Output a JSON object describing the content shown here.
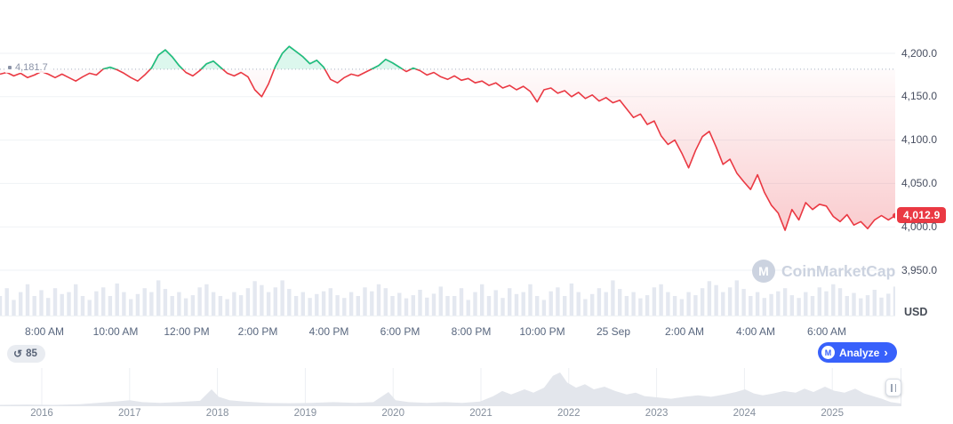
{
  "colors": {
    "up_green": "#16c784",
    "down_red": "#ea3943",
    "accent_blue": "#3861fb",
    "grid": "#eff2f5",
    "baseline_dash": "#a8b1c2",
    "volume_bar": "#e4e8f0",
    "navigator_fill": "#e3e6ec",
    "navigator_tick": "#eceff3"
  },
  "icons": {
    "cmc_logo_glyph": "M",
    "history_glyph": "↺",
    "chevron_right_glyph": "›",
    "handle_glyph": "||"
  },
  "overlays": {
    "baseline_label": "4,181.7",
    "price_badge": "4,012.9",
    "currency_label": "USD",
    "watermark_text": "CoinMarketCap"
  },
  "toolbar": {
    "history_count": "85",
    "analyze_label": "Analyze"
  },
  "chart_data": {
    "type": "line",
    "description": "Intraday cryptocurrency price in USD with volume bars and 10-year range navigator",
    "baseline_open": 4181.7,
    "last_price": 4012.9,
    "y_tick_labels": [
      "4,200.0",
      "4,150.0",
      "4,100.0",
      "4,050.0",
      "4,000.0",
      "3,950.0"
    ],
    "y_tick_values": [
      4200,
      4150,
      4100,
      4050,
      4000,
      3950
    ],
    "x_tick_labels": [
      "8:00 AM",
      "10:00 AM",
      "12:00 PM",
      "2:00 PM",
      "4:00 PM",
      "6:00 PM",
      "8:00 PM",
      "10:00 PM",
      "25 Sep",
      "2:00 AM",
      "4:00 AM",
      "6:00 AM"
    ],
    "series": [
      {
        "name": "price_usd",
        "values": [
          4176,
          4178,
          4174,
          4177,
          4172,
          4175,
          4179,
          4176,
          4172,
          4176,
          4172,
          4168,
          4173,
          4177,
          4175,
          4182,
          4184,
          4181,
          4177,
          4172,
          4168,
          4175,
          4183,
          4198,
          4204,
          4196,
          4186,
          4178,
          4174,
          4180,
          4188,
          4191,
          4184,
          4177,
          4174,
          4178,
          4173,
          4158,
          4150,
          4165,
          4185,
          4200,
          4208,
          4202,
          4196,
          4188,
          4192,
          4184,
          4170,
          4166,
          4172,
          4176,
          4174,
          4178,
          4182,
          4186,
          4193,
          4189,
          4184,
          4179,
          4183,
          4180,
          4175,
          4178,
          4173,
          4170,
          4174,
          4169,
          4171,
          4166,
          4168,
          4163,
          4166,
          4160,
          4163,
          4158,
          4162,
          4156,
          4144,
          4158,
          4160,
          4154,
          4157,
          4150,
          4155,
          4148,
          4152,
          4145,
          4149,
          4143,
          4146,
          4136,
          4126,
          4130,
          4118,
          4122,
          4105,
          4095,
          4100,
          4085,
          4068,
          4088,
          4104,
          4110,
          4092,
          4072,
          4078,
          4062,
          4052,
          4043,
          4060,
          4040,
          4025,
          4016,
          3996,
          4020,
          4008,
          4028,
          4020,
          4026,
          4024,
          4012,
          4006,
          4014,
          4002,
          4006,
          3998,
          4008,
          4013,
          4008,
          4012.9
        ]
      }
    ],
    "volume_profile": [
      0.5,
      0.7,
      0.4,
      0.6,
      0.8,
      0.5,
      0.65,
      0.45,
      0.7,
      0.55,
      0.6,
      0.8,
      0.5,
      0.4,
      0.62,
      0.72,
      0.5,
      0.82,
      0.6,
      0.42,
      0.55,
      0.7,
      0.6,
      0.9,
      0.68,
      0.5,
      0.6,
      0.44,
      0.52,
      0.72,
      0.8,
      0.6,
      0.5,
      0.42,
      0.6,
      0.52,
      0.7,
      0.88,
      0.78,
      0.6,
      0.72,
      0.9,
      0.68,
      0.5,
      0.6,
      0.45,
      0.55,
      0.62,
      0.7,
      0.52,
      0.45,
      0.6,
      0.5,
      0.72,
      0.62,
      0.8,
      0.7,
      0.5,
      0.58,
      0.44,
      0.52,
      0.66,
      0.46,
      0.56,
      0.74,
      0.5
    ],
    "navigator": {
      "x_tick_labels": [
        "2016",
        "2017",
        "2018",
        "2019",
        "2020",
        "2021",
        "2022",
        "2023",
        "2024",
        "2025"
      ],
      "profile": [
        [
          0,
          0.04
        ],
        [
          30,
          0.05
        ],
        [
          60,
          0.04
        ],
        [
          90,
          0.06
        ],
        [
          110,
          0.1
        ],
        [
          130,
          0.14
        ],
        [
          146,
          0.18
        ],
        [
          160,
          0.12
        ],
        [
          180,
          0.1
        ],
        [
          200,
          0.12
        ],
        [
          225,
          0.16
        ],
        [
          238,
          0.5
        ],
        [
          246,
          0.28
        ],
        [
          258,
          0.18
        ],
        [
          275,
          0.14
        ],
        [
          300,
          0.1
        ],
        [
          325,
          0.09
        ],
        [
          350,
          0.1
        ],
        [
          375,
          0.12
        ],
        [
          400,
          0.1
        ],
        [
          420,
          0.12
        ],
        [
          437,
          0.42
        ],
        [
          445,
          0.18
        ],
        [
          460,
          0.12
        ],
        [
          480,
          0.1
        ],
        [
          500,
          0.12
        ],
        [
          520,
          0.1
        ],
        [
          540,
          0.14
        ],
        [
          555,
          0.3
        ],
        [
          565,
          0.45
        ],
        [
          575,
          0.35
        ],
        [
          590,
          0.5
        ],
        [
          600,
          0.4
        ],
        [
          612,
          0.55
        ],
        [
          622,
          0.9
        ],
        [
          630,
          1.0
        ],
        [
          638,
          0.7
        ],
        [
          648,
          0.55
        ],
        [
          658,
          0.65
        ],
        [
          668,
          0.5
        ],
        [
          680,
          0.58
        ],
        [
          692,
          0.45
        ],
        [
          705,
          0.35
        ],
        [
          715,
          0.4
        ],
        [
          725,
          0.3
        ],
        [
          740,
          0.26
        ],
        [
          755,
          0.22
        ],
        [
          770,
          0.28
        ],
        [
          785,
          0.32
        ],
        [
          800,
          0.28
        ],
        [
          815,
          0.35
        ],
        [
          828,
          0.42
        ],
        [
          838,
          0.5
        ],
        [
          848,
          0.38
        ],
        [
          858,
          0.32
        ],
        [
          870,
          0.38
        ],
        [
          882,
          0.45
        ],
        [
          895,
          0.4
        ],
        [
          905,
          0.52
        ],
        [
          915,
          0.42
        ],
        [
          928,
          0.58
        ],
        [
          938,
          0.46
        ],
        [
          950,
          0.4
        ],
        [
          962,
          0.52
        ],
        [
          972,
          0.38
        ],
        [
          982,
          0.3
        ],
        [
          992,
          0.22
        ],
        [
          1002,
          0.12
        ],
        [
          1014,
          0.08
        ]
      ]
    }
  }
}
